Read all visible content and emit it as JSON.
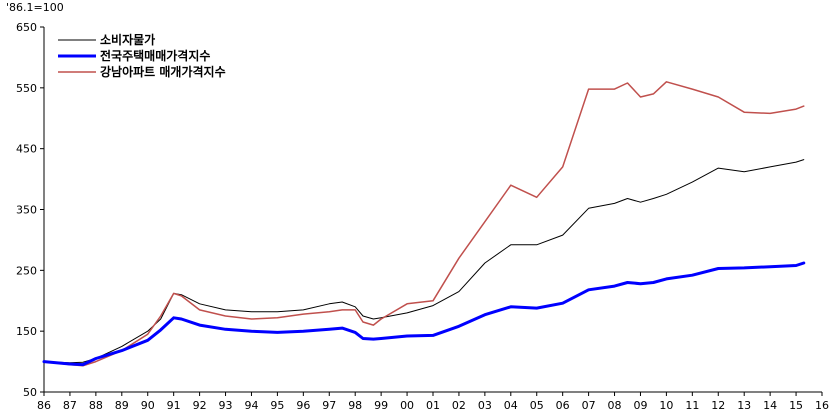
{
  "chart_data": {
    "type": "line",
    "title": "",
    "base_note": "'86.1=100",
    "xlabel": "",
    "ylabel": "",
    "ylim": [
      50,
      650
    ],
    "yticks": [
      "50",
      "150",
      "250",
      "350",
      "450",
      "550",
      "650"
    ],
    "xticks": [
      "86",
      "87",
      "88",
      "89",
      "90",
      "91",
      "92",
      "93",
      "94",
      "95",
      "96",
      "97",
      "98",
      "99",
      "00",
      "01",
      "02",
      "03",
      "04",
      "05",
      "06",
      "07",
      "08",
      "09",
      "10",
      "11",
      "12",
      "13",
      "14",
      "15",
      "16"
    ],
    "xlim": [
      1986,
      2016
    ],
    "legend_position": "top-left",
    "series": [
      {
        "name": "소비자물가",
        "color": "#000000",
        "width": 1,
        "x": [
          1986,
          1987,
          1987.5,
          1988,
          1989,
          1990,
          1990.5,
          1991,
          1991.3,
          1992,
          1993,
          1994,
          1995,
          1996,
          1997,
          1997.5,
          1998,
          1998.3,
          1998.7,
          1999,
          2000,
          2001,
          2002,
          2003,
          2004,
          2005,
          2006,
          2007,
          2008,
          2008.5,
          2009,
          2009.5,
          2010,
          2011,
          2012,
          2013,
          2014,
          2015,
          2015.3
        ],
        "values": [
          100,
          98,
          99,
          105,
          125,
          150,
          170,
          212,
          210,
          195,
          185,
          182,
          182,
          185,
          195,
          198,
          190,
          175,
          170,
          172,
          180,
          192,
          215,
          262,
          292,
          292,
          308,
          352,
          360,
          368,
          362,
          368,
          375,
          395,
          418,
          412,
          420,
          428,
          432
        ]
      },
      {
        "name": "전국주택매매가격지수",
        "color": "#0000ff",
        "width": 3,
        "x": [
          1986,
          1987,
          1987.5,
          1988,
          1989,
          1990,
          1990.5,
          1991,
          1991.3,
          1992,
          1993,
          1994,
          1995,
          1996,
          1997,
          1997.5,
          1998,
          1998.3,
          1998.7,
          1999,
          2000,
          2001,
          2002,
          2003,
          2004,
          2005,
          2006,
          2007,
          2008,
          2008.5,
          2009,
          2009.5,
          2010,
          2011,
          2012,
          2013,
          2014,
          2015,
          2015.3
        ],
        "values": [
          100,
          96,
          95,
          105,
          118,
          135,
          152,
          172,
          170,
          160,
          153,
          150,
          148,
          150,
          153,
          155,
          148,
          138,
          137,
          138,
          142,
          143,
          158,
          177,
          190,
          188,
          196,
          218,
          224,
          230,
          228,
          230,
          236,
          242,
          253,
          254,
          256,
          258,
          262
        ]
      },
      {
        "name": "강남아파트 매개가격지수",
        "color": "#c0504d",
        "width": 1.5,
        "x": [
          1986,
          1987,
          1987.5,
          1988,
          1989,
          1990,
          1990.5,
          1991,
          1991.3,
          1992,
          1993,
          1994,
          1995,
          1996,
          1997,
          1997.5,
          1998,
          1998.3,
          1998.7,
          1999,
          2000,
          2001,
          2002,
          2003,
          2004,
          2005,
          2006,
          2007,
          2008,
          2008.5,
          2009,
          2009.5,
          2010,
          2011,
          2012,
          2013,
          2014,
          2015,
          2015.3
        ],
        "values": [
          100,
          95,
          93,
          100,
          118,
          145,
          175,
          212,
          208,
          185,
          175,
          170,
          172,
          178,
          182,
          185,
          185,
          165,
          160,
          170,
          195,
          200,
          270,
          330,
          390,
          370,
          420,
          548,
          548,
          558,
          535,
          540,
          560,
          548,
          535,
          510,
          508,
          515,
          520
        ]
      }
    ]
  }
}
